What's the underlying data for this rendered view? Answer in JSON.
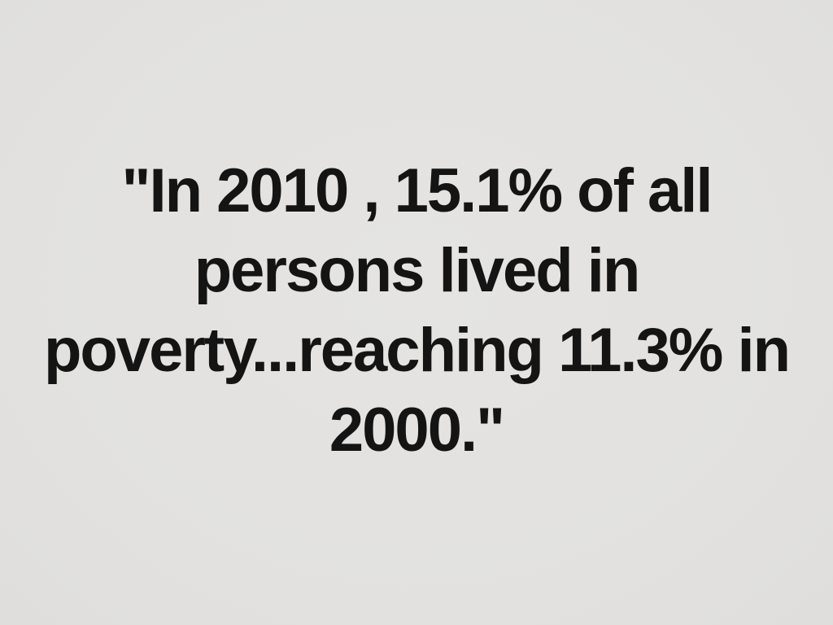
{
  "slide": {
    "type": "presentation-slide",
    "background_color": "#e3e2e0",
    "text_color": "#141414",
    "quote": {
      "lines": [
        "\"In 2010 , 15.1% of all",
        "persons lived in",
        "poverty...reaching 11.3% in",
        "2000.\""
      ],
      "full_text": "\"In 2010 , 15.1% of all persons lived in poverty...reaching 11.3% in 2000.\""
    }
  }
}
